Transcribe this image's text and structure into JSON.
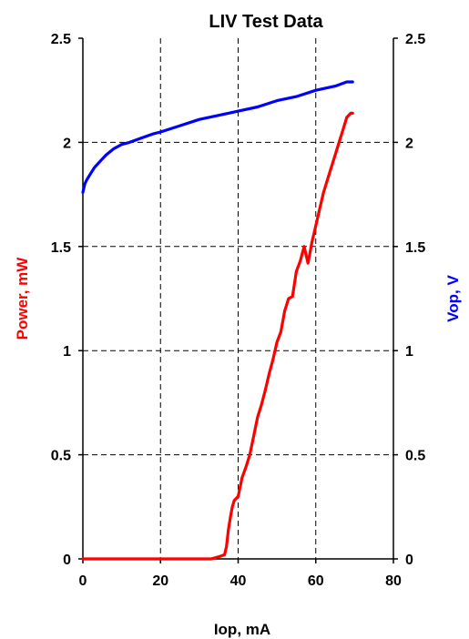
{
  "chart_data": {
    "type": "line",
    "title": "LIV Test Data",
    "xlabel": "Iop, mA",
    "ylabel_left": "Power, mW",
    "ylabel_right": "Vop, V",
    "xlim": [
      0,
      80
    ],
    "ylim_left": [
      0,
      2.5
    ],
    "ylim_right": [
      0,
      2.5
    ],
    "x_ticks": [
      "0",
      "20",
      "40",
      "60",
      "80"
    ],
    "y_ticks_left": [
      "0",
      "0.5",
      "1",
      "1.5",
      "2",
      "2.5"
    ],
    "y_ticks_right": [
      "0",
      "0.5",
      "1",
      "1.5",
      "2",
      "2.5"
    ],
    "grid": true,
    "colors": {
      "power": "#ff0000",
      "vop": "#0000ff"
    },
    "series": [
      {
        "name": "Power, mW",
        "axis": "left",
        "color": "#ff0000",
        "x": [
          0,
          10,
          20,
          30,
          33,
          35,
          36.5,
          37,
          37.5,
          38,
          38.5,
          39,
          40,
          41,
          42,
          43,
          44,
          45,
          46,
          47,
          48,
          49,
          50,
          51,
          52,
          53,
          54,
          55,
          56,
          57,
          58,
          58.5,
          59,
          60,
          61,
          62,
          63,
          64,
          65,
          66,
          67,
          68,
          69,
          69.5
        ],
        "y": [
          0,
          0,
          0,
          0,
          0,
          0.01,
          0.02,
          0.06,
          0.14,
          0.2,
          0.25,
          0.28,
          0.3,
          0.39,
          0.44,
          0.5,
          0.59,
          0.68,
          0.74,
          0.81,
          0.89,
          0.96,
          1.04,
          1.09,
          1.19,
          1.25,
          1.26,
          1.38,
          1.43,
          1.5,
          1.42,
          1.47,
          1.52,
          1.6,
          1.68,
          1.76,
          1.82,
          1.88,
          1.94,
          2.0,
          2.06,
          2.12,
          2.14,
          2.14
        ]
      },
      {
        "name": "Vop, V",
        "axis": "right",
        "color": "#0000ff",
        "x": [
          0,
          0.5,
          1,
          2,
          3,
          4,
          5,
          6,
          8,
          10,
          12,
          15,
          18,
          20,
          25,
          30,
          35,
          40,
          45,
          50,
          55,
          60,
          65,
          68,
          69.5
        ],
        "y": [
          1.76,
          1.8,
          1.82,
          1.85,
          1.88,
          1.9,
          1.92,
          1.94,
          1.97,
          1.99,
          2.0,
          2.02,
          2.04,
          2.05,
          2.08,
          2.11,
          2.13,
          2.15,
          2.17,
          2.2,
          2.22,
          2.25,
          2.27,
          2.29,
          2.29
        ]
      }
    ]
  }
}
